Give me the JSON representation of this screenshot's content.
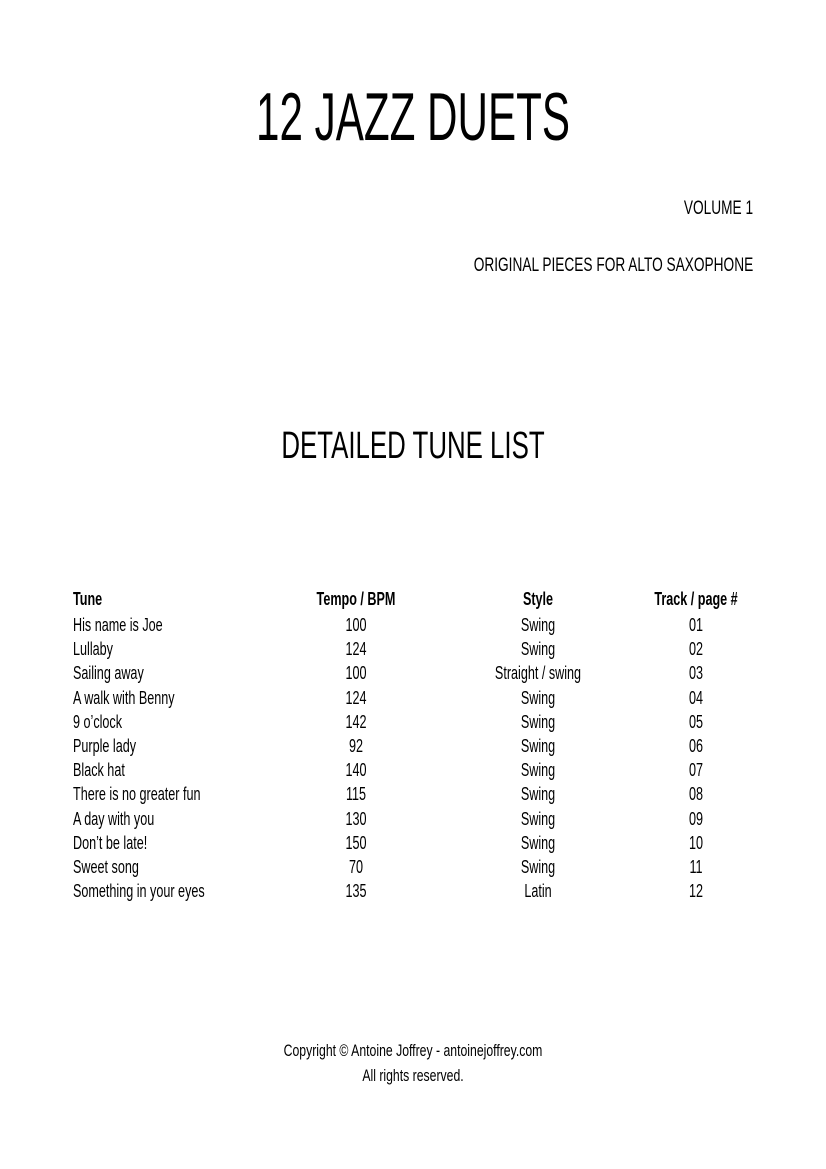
{
  "title": "12 JAZZ DUETS",
  "volume": "VOLUME 1",
  "subtitle": "ORIGINAL PIECES FOR ALTO SAXOPHONE",
  "section_title": "DETAILED TUNE LIST",
  "table": {
    "headers": [
      "Tune",
      "Tempo / BPM",
      "Style",
      "Track / page #"
    ],
    "rows": [
      [
        "His name is Joe",
        "100",
        "Swing",
        "01"
      ],
      [
        "Lullaby",
        "124",
        "Swing",
        "02"
      ],
      [
        "Sailing away",
        "100",
        "Straight / swing",
        "03"
      ],
      [
        "A walk with Benny",
        "124",
        "Swing",
        "04"
      ],
      [
        "9 o’clock",
        "142",
        "Swing",
        "05"
      ],
      [
        "Purple lady",
        "92",
        "Swing",
        "06"
      ],
      [
        "Black hat",
        "140",
        "Swing",
        "07"
      ],
      [
        "There is no greater fun",
        "115",
        "Swing",
        "08"
      ],
      [
        "A day with you",
        "130",
        "Swing",
        "09"
      ],
      [
        "Don’t be late!",
        "150",
        "Swing",
        "10"
      ],
      [
        "Sweet song",
        "70",
        "Swing",
        "11"
      ],
      [
        "Something in your eyes",
        "135",
        "Latin",
        "12"
      ]
    ]
  },
  "footer": {
    "copyright": "Copyright © Antoine Joffrey - antoinejoffrey.com",
    "rights": "All rights reserved."
  }
}
